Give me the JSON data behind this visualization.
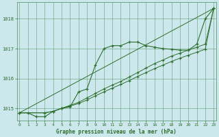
{
  "title": "Graphe pression niveau de la mer (hPa)",
  "bg_color": "#cce8ec",
  "grid_color": "#4a8a5a",
  "line_color": "#2d6e2d",
  "x_ticks": [
    0,
    1,
    2,
    3,
    4,
    5,
    6,
    7,
    8,
    9,
    10,
    11,
    12,
    13,
    14,
    15,
    16,
    17,
    18,
    19,
    20,
    21,
    22,
    23
  ],
  "ylim": [
    1014.6,
    1018.55
  ],
  "yticks": [
    1015,
    1016,
    1017,
    1018
  ],
  "series1_x": [
    0,
    1,
    2,
    3,
    4,
    5,
    6,
    7,
    8,
    9,
    10,
    11,
    12,
    13,
    14,
    15,
    16,
    17,
    18,
    19,
    20,
    21,
    22,
    23
  ],
  "series1_y": [
    1014.85,
    1014.85,
    1014.72,
    1014.72,
    1014.9,
    1015.0,
    1015.05,
    1015.55,
    1015.65,
    1016.45,
    1017.0,
    1017.1,
    1017.1,
    1017.22,
    1017.22,
    1017.1,
    1017.05,
    1017.0,
    1016.98,
    1016.95,
    1016.95,
    1017.15,
    1018.0,
    1018.35
  ],
  "series2_x": [
    0,
    23
  ],
  "series2_y": [
    1014.85,
    1018.35
  ],
  "series3_x": [
    0,
    3,
    4,
    5,
    6,
    7,
    8,
    9,
    10,
    11,
    12,
    13,
    14,
    15,
    16,
    17,
    18,
    19,
    20,
    21,
    22,
    23
  ],
  "series3_y": [
    1014.85,
    1014.85,
    1014.9,
    1015.0,
    1015.1,
    1015.2,
    1015.35,
    1015.5,
    1015.65,
    1015.78,
    1015.9,
    1016.05,
    1016.2,
    1016.35,
    1016.5,
    1016.62,
    1016.75,
    1016.85,
    1016.95,
    1017.05,
    1017.15,
    1018.35
  ],
  "series4_x": [
    0,
    3,
    4,
    5,
    6,
    7,
    8,
    9,
    10,
    11,
    12,
    13,
    14,
    15,
    16,
    17,
    18,
    19,
    20,
    21,
    22,
    23
  ],
  "series4_y": [
    1014.85,
    1014.85,
    1014.9,
    1015.0,
    1015.08,
    1015.16,
    1015.28,
    1015.42,
    1015.55,
    1015.68,
    1015.8,
    1015.93,
    1016.07,
    1016.2,
    1016.33,
    1016.45,
    1016.57,
    1016.68,
    1016.78,
    1016.88,
    1016.98,
    1018.35
  ]
}
